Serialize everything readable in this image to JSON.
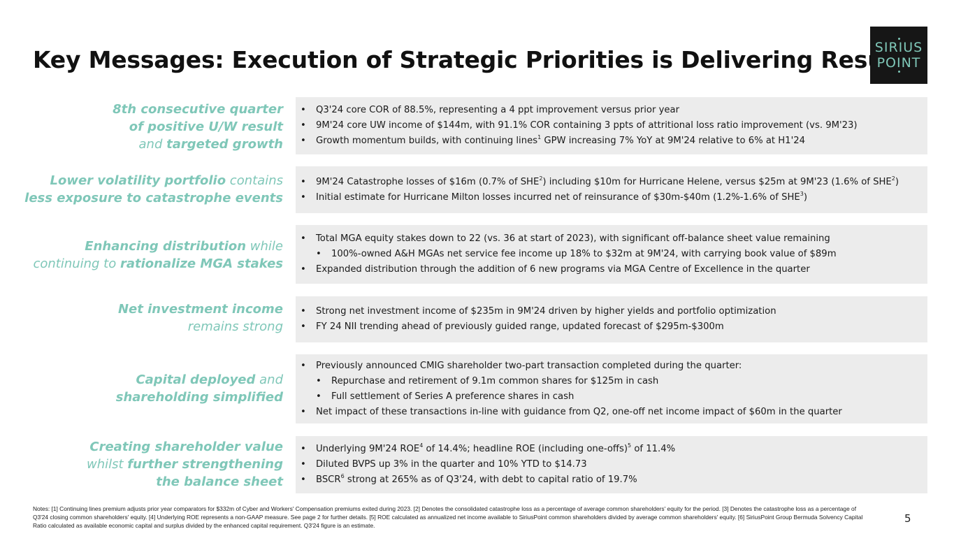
{
  "title": "Key Messages: Execution of Strategic Priorities is Delivering Results",
  "logo": {
    "line1": "SIRIUS",
    "line2": "POINT"
  },
  "rows": [
    {
      "label": [
        {
          "text": "8th consecutive quarter",
          "strong": true
        },
        {
          "text": "of positive U/W result",
          "strong": true
        },
        [
          {
            "text": "and ",
            "strong": false
          },
          {
            "text": "targeted growth",
            "strong": true
          }
        ]
      ],
      "bullets": [
        {
          "level": 1,
          "parts": [
            "Q3'24 core COR of 88.5%, representing a 4 ppt improvement versus prior year"
          ]
        },
        {
          "level": 1,
          "parts": [
            "9M'24 core UW income of $144m, with 91.1% COR containing 3 ppts of attritional loss ratio improvement (vs. 9M'23)"
          ]
        },
        {
          "level": 1,
          "parts": [
            "Growth momentum builds, with continuing lines",
            {
              "sup": "1"
            },
            " GPW increasing 7% YoY at 9M'24 relative to 6% at H1'24"
          ]
        }
      ]
    },
    {
      "label": [
        [
          {
            "text": "Lower volatility portfolio",
            "strong": true
          },
          {
            "text": " contains",
            "strong": false
          }
        ],
        {
          "text": "less exposure to catastrophe events",
          "strong": true
        }
      ],
      "bullets": [
        {
          "level": 1,
          "parts": [
            "9M'24 Catastrophe losses of $16m (0.7% of SHE",
            {
              "sup": "2"
            },
            ") including $10m for Hurricane Helene, versus $25m at 9M'23 (1.6% of SHE",
            {
              "sup": "2"
            },
            ")"
          ]
        },
        {
          "level": 1,
          "parts": [
            "Initial estimate for Hurricane Milton losses incurred net of reinsurance of $30m-$40m (1.2%-1.6% of SHE",
            {
              "sup": "3"
            },
            ")"
          ]
        }
      ]
    },
    {
      "label": [
        [
          {
            "text": "Enhancing distribution",
            "strong": true
          },
          {
            "text": " while",
            "strong": false
          }
        ],
        [
          {
            "text": "continuing to ",
            "strong": false
          },
          {
            "text": "rationalize MGA stakes",
            "strong": true
          }
        ]
      ],
      "bullets": [
        {
          "level": 1,
          "parts": [
            "Total MGA equity stakes down to 22 (vs. 36 at start of 2023), with significant off-balance sheet value remaining"
          ]
        },
        {
          "level": 2,
          "parts": [
            "100%-owned A&H MGAs net service fee income up 18% to $32m at 9M'24, with carrying book value of $89m"
          ]
        },
        {
          "level": 1,
          "parts": [
            "Expanded distribution through the addition of 6 new programs via MGA Centre of Excellence in the quarter"
          ]
        }
      ]
    },
    {
      "label": [
        {
          "text": "Net investment income",
          "strong": true
        },
        {
          "text": "remains strong",
          "strong": false
        }
      ],
      "bullets": [
        {
          "level": 1,
          "parts": [
            "Strong net investment income of $235m in 9M'24 driven by higher yields and portfolio optimization"
          ]
        },
        {
          "level": 1,
          "parts": [
            "FY 24 NII trending ahead of previously guided range, updated forecast of $295m-$300m"
          ]
        }
      ]
    },
    {
      "label": [
        [
          {
            "text": "Capital deployed",
            "strong": true
          },
          {
            "text": " and",
            "strong": false
          }
        ],
        {
          "text": "shareholding simplified",
          "strong": true
        }
      ],
      "bullets": [
        {
          "level": 1,
          "parts": [
            "Previously announced CMIG shareholder two-part transaction completed during the quarter:"
          ]
        },
        {
          "level": 2,
          "parts": [
            "Repurchase and retirement of 9.1m common shares for $125m in cash"
          ]
        },
        {
          "level": 2,
          "parts": [
            "Full settlement of Series A preference shares in cash"
          ]
        },
        {
          "level": 1,
          "parts": [
            "Net impact of these transactions in-line with guidance from Q2, one-off net income impact of $60m in the quarter"
          ]
        }
      ]
    },
    {
      "label": [
        {
          "text": "Creating shareholder value",
          "strong": true
        },
        [
          {
            "text": "whilst ",
            "strong": false
          },
          {
            "text": "further strengthening",
            "strong": true
          }
        ],
        {
          "text": "the balance sheet",
          "strong": true
        }
      ],
      "bullets": [
        {
          "level": 1,
          "parts": [
            "Underlying 9M'24 ROE",
            {
              "sup": "4"
            },
            " of 14.4%; headline ROE (including one-offs)",
            {
              "sup": "5"
            },
            " of 11.4%"
          ]
        },
        {
          "level": 1,
          "parts": [
            "Diluted BVPS up 3% in the quarter and 10% YTD to $14.73"
          ]
        },
        {
          "level": 1,
          "parts": [
            "BSCR",
            {
              "sup": "6"
            },
            " strong at 265% as of Q3'24, with debt to capital ratio of 19.7%"
          ]
        }
      ]
    }
  ],
  "notes": "Notes: [1] Continuing lines premium adjusts prior year comparators for $332m of Cyber and Workers' Compensation premiums exited during 2023. [2] Denotes the consolidated catastrophe loss as a percentage of average common shareholders' equity for the period. [3] Denotes the catastrophe loss as a percentage of Q3'24 closing common shareholders' equity. [4] Underlying ROE represents a non-GAAP measure. See page 2 for further details. [5] ROE calculated as annualized net income available to SiriusPoint common shareholders divided by average common shareholders' equity. [6] SiriusPoint Group Bermuda Solvency Capital Ratio calculated as available economic capital and surplus divided by the enhanced capital requirement. Q3'24 figure is an estimate.",
  "page_number": "5"
}
